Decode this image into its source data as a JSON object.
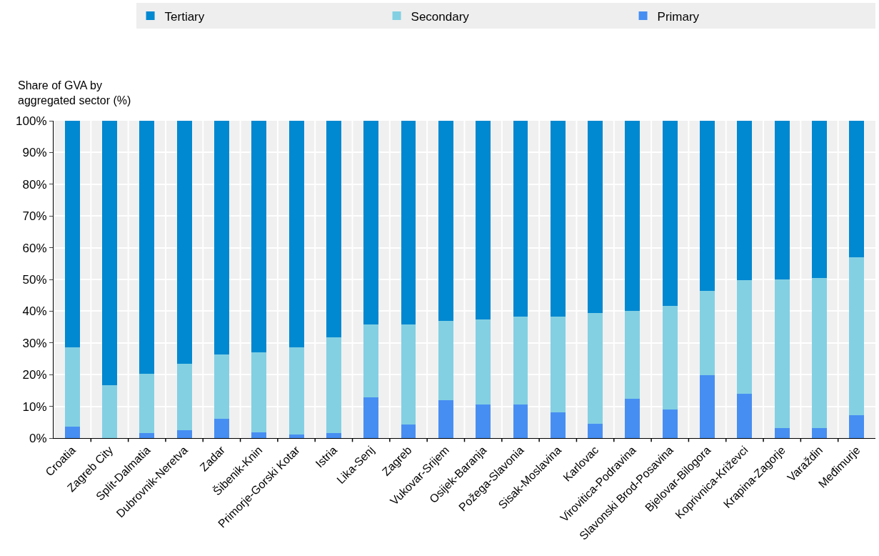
{
  "chart_data": {
    "type": "bar",
    "stacked": true,
    "ylabel": "Share of GVA by\naggregated sector (%)",
    "categories": [
      "Croatia",
      "Zagreb City",
      "Split-Dalmatia",
      "Dubrovnik-Neretva",
      "Zadar",
      "Šibenik-Knin",
      "Primorje-Gorski Kotar",
      "Istria",
      "Lika-Senj",
      "Zagreb",
      "Vukovar-Srijem",
      "Osijek-Baranja",
      "Požega-Slavonia",
      "Sisak-Moslavina",
      "Karlovac",
      "Virovitica-Podravina",
      "Slavonski Brod-Posavina",
      "Bjelovar-Bilogora",
      "Koprivnica-Križevci",
      "Krapina-Zagorje",
      "Varaždin",
      "Međimurje"
    ],
    "series": [
      {
        "name": "Primary",
        "color": "#478ef2",
        "values": [
          3.6,
          0,
          1.6,
          2.4,
          6.0,
          1.8,
          1.2,
          1.6,
          12.8,
          4.3,
          12.0,
          10.5,
          10.5,
          8.0,
          4.4,
          12.4,
          9.0,
          19.8,
          14.0,
          3.1,
          3.1,
          7.3
        ]
      },
      {
        "name": "Secondary",
        "color": "#83d0e3",
        "values": [
          25.0,
          16.7,
          18.7,
          21.0,
          20.3,
          25.2,
          27.4,
          30.1,
          23.1,
          31.6,
          24.9,
          26.8,
          27.7,
          30.4,
          35.0,
          27.6,
          32.6,
          26.5,
          35.8,
          46.9,
          47.4,
          49.7
        ]
      },
      {
        "name": "Tertiary",
        "color": "#0088d0",
        "values": [
          71.4,
          83.3,
          79.7,
          76.6,
          73.7,
          73.0,
          71.4,
          68.3,
          64.1,
          64.1,
          63.1,
          62.7,
          61.8,
          61.6,
          60.6,
          60.0,
          58.4,
          53.7,
          50.2,
          50.0,
          49.5,
          43.0
        ]
      }
    ],
    "ylim": [
      0,
      100
    ],
    "yticks": [
      {
        "value": 0,
        "label": "0%"
      },
      {
        "value": 10,
        "label": "10%"
      },
      {
        "value": 20,
        "label": "20%"
      },
      {
        "value": 30,
        "label": "30%"
      },
      {
        "value": 40,
        "label": "40%"
      },
      {
        "value": 50,
        "label": "50%"
      },
      {
        "value": 60,
        "label": "60%"
      },
      {
        "value": 70,
        "label": "70%"
      },
      {
        "value": 80,
        "label": "80%"
      },
      {
        "value": 90,
        "label": "90%"
      },
      {
        "value": 100,
        "label": "100%"
      }
    ],
    "grid": true,
    "legend": "top"
  }
}
